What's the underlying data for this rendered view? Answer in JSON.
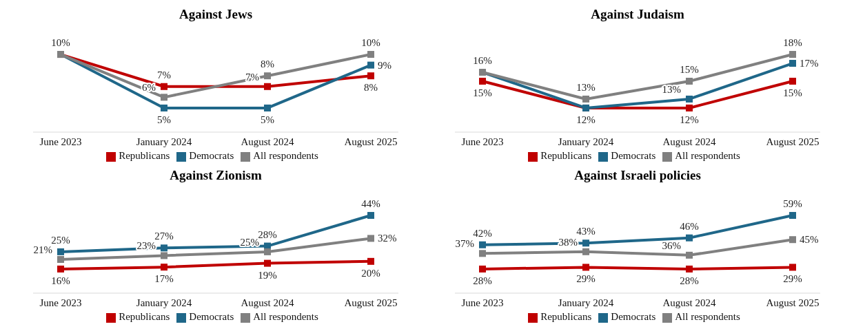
{
  "chart_data": [
    {
      "type": "line",
      "title": "Against Jews",
      "categories": [
        "June 2023",
        "January 2024",
        "August 2024",
        "August 2025"
      ],
      "legend": "bottom",
      "marker": "square",
      "tick_labels": "x",
      "series": [
        {
          "name": "Republicans",
          "color": "#c00000",
          "values": [
            10,
            7,
            7,
            8
          ],
          "value_labels": [
            null,
            "7%",
            "7%",
            "8%"
          ]
        },
        {
          "name": "Democrats",
          "color": "#1f6789",
          "values": [
            10,
            5,
            5,
            9
          ],
          "value_labels": [
            null,
            "5%",
            "5%",
            "9%"
          ]
        },
        {
          "name": "All respondents",
          "color": "#808080",
          "values": [
            10,
            6,
            8,
            10
          ],
          "value_labels": [
            "10%",
            "6%",
            "8%",
            "10%"
          ]
        }
      ]
    },
    {
      "type": "line",
      "title": "Against Judaism",
      "categories": [
        "June 2023",
        "January 2024",
        "August 2024",
        "August 2025"
      ],
      "legend": "bottom",
      "marker": "square",
      "tick_labels": "x",
      "series": [
        {
          "name": "Republicans",
          "color": "#c00000",
          "values": [
            15,
            12,
            12,
            15
          ],
          "value_labels": [
            "15%",
            null,
            "12%",
            "15%"
          ]
        },
        {
          "name": "Democrats",
          "color": "#1f6789",
          "values": [
            16,
            12,
            13,
            17
          ],
          "value_labels": [
            null,
            "12%",
            "13%",
            "17%"
          ]
        },
        {
          "name": "All respondents",
          "color": "#808080",
          "values": [
            16,
            13,
            15,
            18
          ],
          "value_labels": [
            "16%",
            "13%",
            "15%",
            "18%"
          ]
        }
      ]
    },
    {
      "type": "line",
      "title": "Against Zionism",
      "categories": [
        "June 2023",
        "January 2024",
        "August 2024",
        "August 2025"
      ],
      "legend": "bottom",
      "marker": "square",
      "tick_labels": "x",
      "series": [
        {
          "name": "Republicans",
          "color": "#c00000",
          "values": [
            16,
            17,
            19,
            20
          ],
          "value_labels": [
            "16%",
            "17%",
            "19%",
            "20%"
          ]
        },
        {
          "name": "Democrats",
          "color": "#1f6789",
          "values": [
            25,
            27,
            28,
            44
          ],
          "value_labels": [
            "25%",
            "27%",
            "28%",
            "44%"
          ]
        },
        {
          "name": "All respondents",
          "color": "#808080",
          "values": [
            21,
            23,
            25,
            32
          ],
          "value_labels": [
            "21%",
            "23%",
            "25%",
            "32%"
          ]
        }
      ]
    },
    {
      "type": "line",
      "title": "Against Israeli policies",
      "categories": [
        "June 2023",
        "January 2024",
        "August 2024",
        "August 2025"
      ],
      "legend": "bottom",
      "marker": "square",
      "tick_labels": "x",
      "series": [
        {
          "name": "Republicans",
          "color": "#c00000",
          "values": [
            28,
            29,
            28,
            29
          ],
          "value_labels": [
            "28%",
            "29%",
            "28%",
            "29%"
          ]
        },
        {
          "name": "Democrats",
          "color": "#1f6789",
          "values": [
            42,
            43,
            46,
            59
          ],
          "value_labels": [
            "42%",
            "43%",
            "46%",
            "59%"
          ]
        },
        {
          "name": "All respondents",
          "color": "#808080",
          "values": [
            37,
            38,
            36,
            45
          ],
          "value_labels": [
            "37%",
            "38%",
            "36%",
            "45%"
          ]
        }
      ]
    }
  ]
}
